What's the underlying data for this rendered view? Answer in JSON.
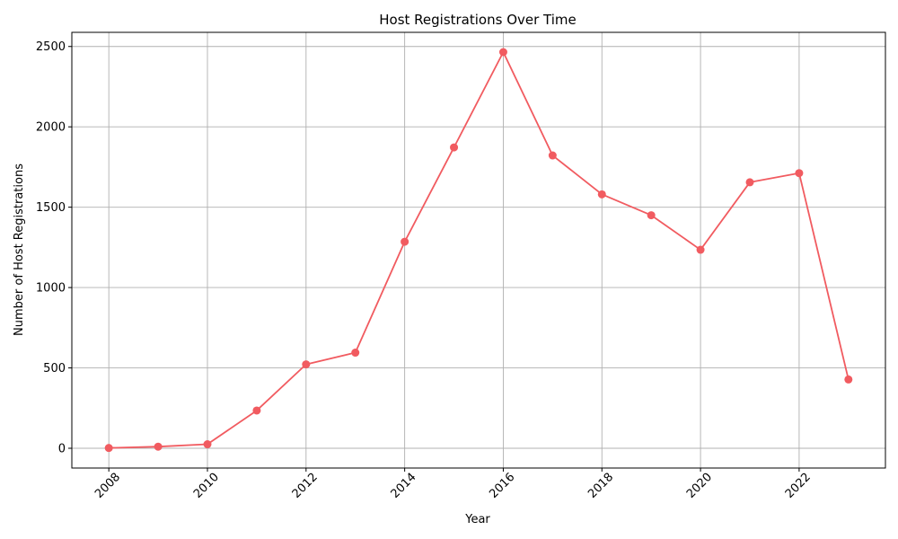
{
  "chart_data": {
    "type": "line",
    "title": "Host Registrations Over Time",
    "xlabel": "Year",
    "ylabel": "Number of Host Registrations",
    "x": [
      2008,
      2009,
      2010,
      2011,
      2012,
      2013,
      2014,
      2015,
      2016,
      2017,
      2018,
      2019,
      2020,
      2021,
      2022,
      2023
    ],
    "series": [
      {
        "values": [
          2,
          10,
          25,
          235,
          522,
          595,
          1285,
          1872,
          2465,
          1822,
          1580,
          1450,
          1235,
          1655,
          1712,
          428
        ],
        "color": "#f15b60"
      }
    ],
    "xticks": [
      "2008",
      "2010",
      "2012",
      "2014",
      "2016",
      "2018",
      "2020",
      "2022"
    ],
    "yticks": [
      "0",
      "500",
      "1000",
      "1500",
      "2000",
      "2500"
    ],
    "xlim": [
      2007.25,
      2023.75
    ],
    "ylim": [
      -123,
      2588
    ],
    "grid": true,
    "marker": "circle"
  }
}
